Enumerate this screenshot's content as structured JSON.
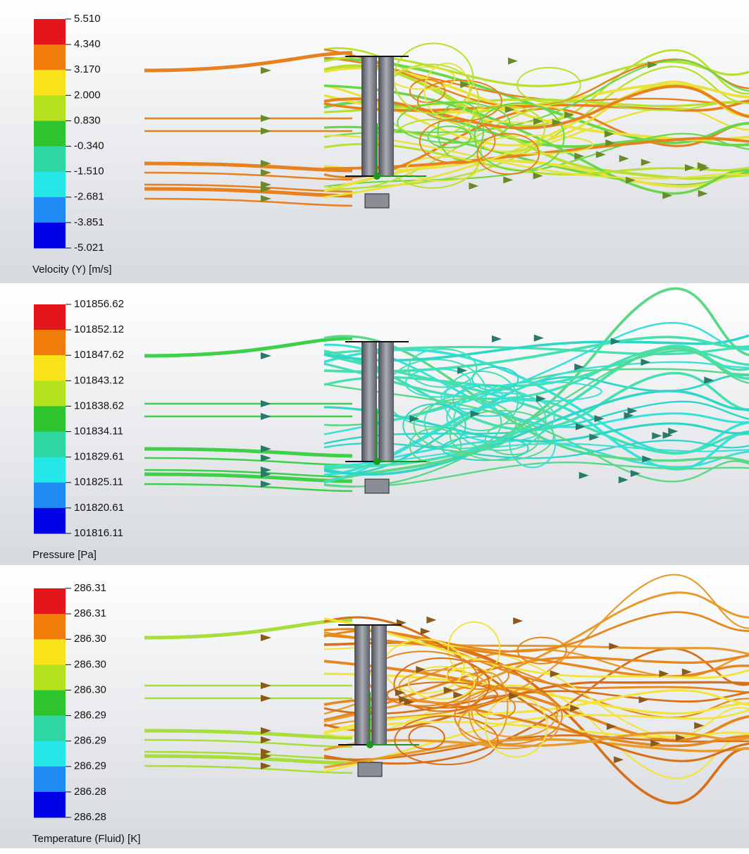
{
  "panels": [
    {
      "legend": [
        "5.510",
        "4.340",
        "3.170",
        "2.000",
        "0.830",
        "-0.340",
        "-1.510",
        "-2.681",
        "-3.851",
        "-5.021"
      ],
      "caption": "Velocity (Y) [m/s]"
    },
    {
      "legend": [
        "101856.62",
        "101852.12",
        "101847.62",
        "101843.12",
        "101838.62",
        "101834.11",
        "101829.61",
        "101825.11",
        "101820.61",
        "101816.11"
      ],
      "caption": "Pressure [Pa]"
    },
    {
      "legend": [
        "286.31",
        "286.31",
        "286.30",
        "286.30",
        "286.30",
        "286.29",
        "286.29",
        "286.29",
        "286.28",
        "286.28"
      ],
      "caption": "Temperature (Fluid) [K]"
    }
  ]
}
